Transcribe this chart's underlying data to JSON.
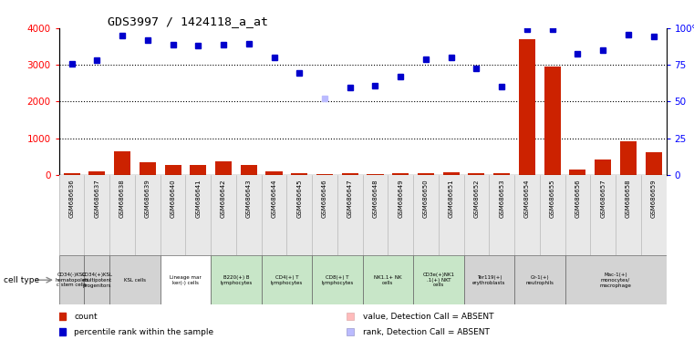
{
  "title": "GDS3997 / 1424118_a_at",
  "samples": [
    "GSM686636",
    "GSM686637",
    "GSM686638",
    "GSM686639",
    "GSM686640",
    "GSM686641",
    "GSM686642",
    "GSM686643",
    "GSM686644",
    "GSM686645",
    "GSM686646",
    "GSM686647",
    "GSM686648",
    "GSM686649",
    "GSM686650",
    "GSM686651",
    "GSM686652",
    "GSM686653",
    "GSM686654",
    "GSM686655",
    "GSM686656",
    "GSM686657",
    "GSM686658",
    "GSM686659"
  ],
  "counts": [
    50,
    90,
    650,
    350,
    280,
    270,
    380,
    270,
    100,
    50,
    30,
    50,
    30,
    50,
    60,
    80,
    40,
    50,
    3700,
    2950,
    160,
    430,
    920,
    620
  ],
  "percentile_ranks_pct": [
    75.5,
    78.0,
    94.75,
    91.5,
    88.5,
    87.75,
    88.75,
    89.0,
    80.25,
    69.25,
    52.25,
    59.5,
    60.75,
    67.0,
    79.0,
    80.0,
    72.5,
    60.25,
    99.5,
    99.5,
    82.75,
    84.75,
    95.25,
    94.0
  ],
  "absent_counts": [
    false,
    false,
    false,
    false,
    false,
    false,
    false,
    false,
    false,
    false,
    false,
    false,
    false,
    false,
    false,
    false,
    false,
    false,
    false,
    false,
    false,
    false,
    false,
    false
  ],
  "absent_ranks": [
    false,
    false,
    false,
    false,
    false,
    false,
    false,
    false,
    false,
    false,
    true,
    false,
    false,
    false,
    false,
    false,
    false,
    false,
    false,
    false,
    false,
    false,
    false,
    false
  ],
  "cell_groups": [
    {
      "label": "CD34(-)KSL\nhematopoleti\nc stem cells",
      "start": 0,
      "end": 0,
      "color": "#d3d3d3"
    },
    {
      "label": "CD34(+)KSL\nmultipotent\nprogenitors",
      "start": 1,
      "end": 1,
      "color": "#d3d3d3"
    },
    {
      "label": "KSL cells",
      "start": 2,
      "end": 3,
      "color": "#d3d3d3"
    },
    {
      "label": "Lineage mar\nker(-) cells",
      "start": 4,
      "end": 5,
      "color": "#ffffff"
    },
    {
      "label": "B220(+) B\nlymphocytes",
      "start": 6,
      "end": 7,
      "color": "#c8e6c8"
    },
    {
      "label": "CD4(+) T\nlymphocytes",
      "start": 8,
      "end": 9,
      "color": "#c8e6c8"
    },
    {
      "label": "CD8(+) T\nlymphocytes",
      "start": 10,
      "end": 11,
      "color": "#c8e6c8"
    },
    {
      "label": "NK1.1+ NK\ncells",
      "start": 12,
      "end": 13,
      "color": "#c8e6c8"
    },
    {
      "label": "CD3e(+)NK1\n.1(+) NKT\ncells",
      "start": 14,
      "end": 15,
      "color": "#c8e6c8"
    },
    {
      "label": "Ter119(+)\nerythroblasts",
      "start": 16,
      "end": 17,
      "color": "#d3d3d3"
    },
    {
      "label": "Gr-1(+)\nneutrophils",
      "start": 18,
      "end": 19,
      "color": "#d3d3d3"
    },
    {
      "label": "Mac-1(+)\nmonocytes/\nmacrophage",
      "start": 20,
      "end": 23,
      "color": "#d3d3d3"
    }
  ],
  "ylim_left": [
    0,
    4000
  ],
  "ylim_right": [
    0,
    100
  ],
  "yticks_left": [
    0,
    1000,
    2000,
    3000,
    4000
  ],
  "yticks_right": [
    0,
    25,
    50,
    75,
    100
  ],
  "bar_color": "#cc2200",
  "dot_color": "#0000cc",
  "absent_bar_color": "#ffbbbb",
  "absent_dot_color": "#bbbbff",
  "bg_color": "#ffffff",
  "grid_color": "#000000",
  "legend_items": [
    {
      "label": "count",
      "color": "#cc2200"
    },
    {
      "label": "percentile rank within the sample",
      "color": "#0000cc"
    },
    {
      "label": "value, Detection Call = ABSENT",
      "color": "#ffbbbb"
    },
    {
      "label": "rank, Detection Call = ABSENT",
      "color": "#bbbbff"
    }
  ]
}
